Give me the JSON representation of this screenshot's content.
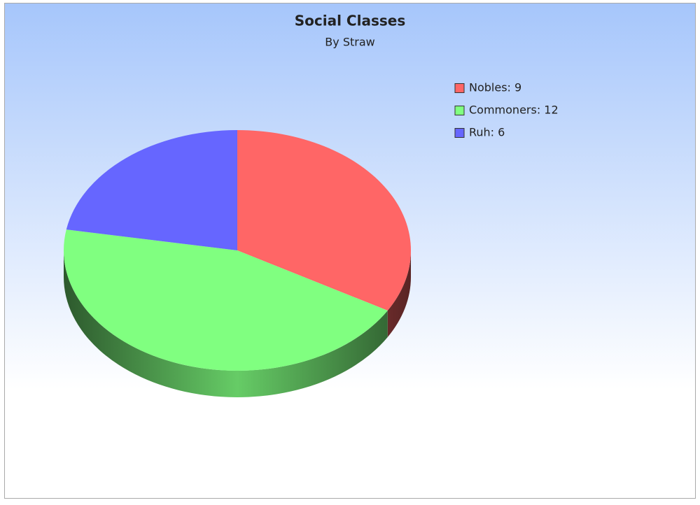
{
  "chart_data": {
    "type": "pie",
    "title": "Social Classes",
    "subtitle": "By Straw",
    "categories": [
      "Nobles: 9",
      "Commoners: 12",
      "Ruh: 6"
    ],
    "values": [
      9,
      12,
      6
    ],
    "colors": [
      "#ff6666",
      "#80ff80",
      "#6666ff"
    ],
    "legend": "upper right"
  }
}
